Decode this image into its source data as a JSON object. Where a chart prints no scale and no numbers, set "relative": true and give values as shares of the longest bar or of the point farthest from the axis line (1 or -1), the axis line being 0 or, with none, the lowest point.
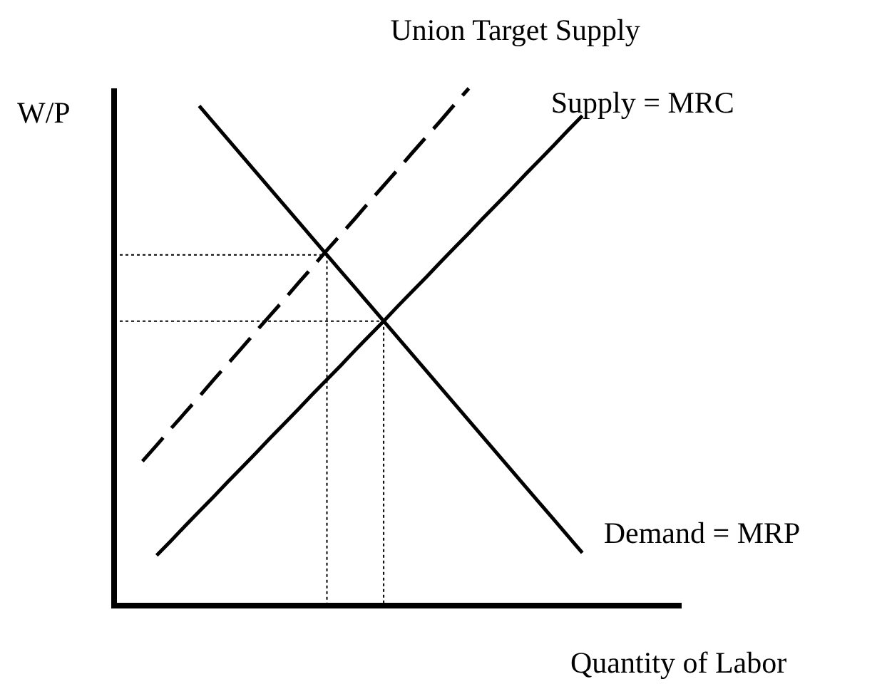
{
  "chart_data": {
    "type": "line",
    "relative": true,
    "xlabel": "Quantity of Labor",
    "ylabel": "W/P",
    "marker": "none",
    "categories": [
      null,
      null,
      null,
      null,
      null,
      null,
      null,
      null,
      null,
      null,
      null,
      null,
      null,
      null,
      null,
      null,
      null,
      null,
      null,
      null,
      null,
      null,
      null,
      null,
      null,
      null,
      null,
      null,
      null,
      null,
      null,
      null,
      null,
      null,
      null,
      null,
      null,
      null,
      null,
      null,
      null
    ],
    "series": [
      {
        "name": "Demand = MRP",
        "color": "#000000",
        "line_style": "solid",
        "values": [
          null,
          null,
          null,
          null,
          null,
          null,
          0.966,
          0.934,
          0.902,
          0.87,
          0.838,
          0.806,
          0.774,
          0.742,
          0.71,
          0.678,
          0.646,
          0.614,
          0.582,
          0.55,
          0.518,
          0.486,
          0.454,
          0.422,
          0.39,
          0.358,
          0.326,
          0.294,
          0.262,
          0.23,
          0.198,
          0.166,
          0.134,
          0.102,
          null,
          null,
          null,
          null,
          null,
          null,
          null
        ]
      },
      {
        "name": "Supply = MRC",
        "color": "#000000",
        "line_style": "solid",
        "values": [
          null,
          null,
          null,
          0.097,
          0.125,
          0.154,
          0.182,
          0.21,
          0.239,
          0.267,
          0.295,
          0.324,
          0.352,
          0.38,
          0.409,
          0.437,
          0.465,
          0.494,
          0.522,
          0.55,
          0.579,
          0.607,
          0.635,
          0.664,
          0.692,
          0.72,
          0.749,
          0.777,
          0.805,
          0.834,
          0.862,
          0.89,
          0.919,
          0.947,
          null,
          null,
          null,
          null,
          null,
          null,
          null
        ]
      },
      {
        "name": "Union Target Supply",
        "color": "#000000",
        "line_style": "dashed",
        "values": [
          null,
          null,
          0.279,
          0.31,
          0.342,
          0.373,
          0.404,
          0.436,
          0.467,
          0.498,
          0.53,
          0.561,
          0.592,
          0.624,
          0.655,
          0.687,
          0.718,
          0.749,
          0.781,
          0.812,
          0.843,
          0.875,
          0.906,
          0.937,
          0.969,
          1.0,
          null,
          null,
          null,
          null,
          null,
          null,
          null,
          null,
          null,
          null,
          null,
          null,
          null,
          null,
          null
        ]
      },
      {
        "color": "#000000",
        "line_style": "dotted",
        "values": [
          0.678,
          0.678,
          0.678,
          0.678,
          0.678,
          0.678,
          0.678,
          0.678,
          0.678,
          0.678,
          0.678,
          0.678,
          0.678,
          0.678,
          0.678,
          0.678,
          null,
          null,
          null,
          null,
          null,
          null,
          null,
          null,
          null,
          null,
          null,
          null,
          null,
          null,
          null,
          null,
          null,
          null,
          null,
          null,
          null,
          null,
          null,
          null,
          null
        ]
      },
      {
        "color": "#000000",
        "line_style": "dotted",
        "values": [
          0.55,
          0.55,
          0.55,
          0.55,
          0.55,
          0.55,
          0.55,
          0.55,
          0.55,
          0.55,
          0.55,
          0.55,
          0.55,
          0.55,
          0.55,
          0.55,
          0.55,
          0.55,
          0.55,
          0.55,
          null,
          null,
          null,
          null,
          null,
          null,
          null,
          null,
          null,
          null,
          null,
          null,
          null,
          null,
          null,
          null,
          null,
          null,
          null,
          null,
          null
        ]
      }
    ]
  }
}
